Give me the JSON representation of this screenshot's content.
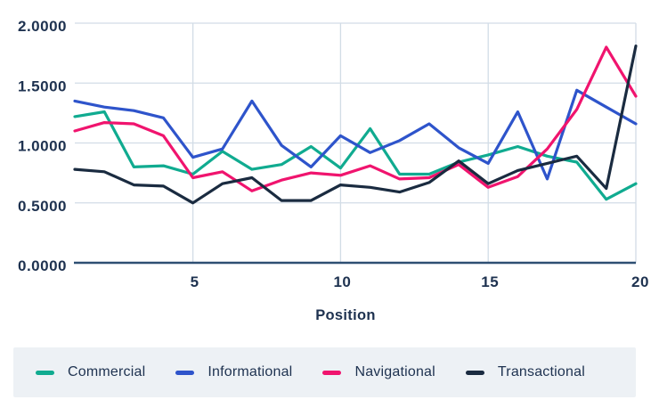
{
  "chart_data": {
    "type": "line",
    "title": "",
    "xlabel": "Position",
    "ylabel": "",
    "x_range": [
      1,
      20
    ],
    "ylim": [
      0,
      2
    ],
    "grid": true,
    "legend_position": "bottom",
    "x": [
      1,
      2,
      3,
      4,
      5,
      6,
      7,
      8,
      9,
      10,
      11,
      12,
      13,
      14,
      15,
      16,
      17,
      18,
      19,
      20
    ],
    "x_ticks": [
      {
        "label": "5",
        "value": 5
      },
      {
        "label": "10",
        "value": 10
      },
      {
        "label": "15",
        "value": 15
      },
      {
        "label": "20",
        "value": 20
      }
    ],
    "y_ticks": [
      {
        "label": "2.0000",
        "value": 2.0
      },
      {
        "label": "1.5000",
        "value": 1.5
      },
      {
        "label": "1.0000",
        "value": 1.0
      },
      {
        "label": "0.5000",
        "value": 0.5
      },
      {
        "label": "0.0000",
        "value": 0.0
      }
    ],
    "series": [
      {
        "name": "Commercial",
        "color": "#10ab90",
        "values": [
          1.22,
          1.26,
          0.8,
          0.81,
          0.74,
          0.93,
          0.78,
          0.82,
          0.97,
          0.79,
          1.12,
          0.74,
          0.74,
          0.84,
          0.9,
          0.97,
          0.89,
          0.84,
          0.53,
          0.66
        ]
      },
      {
        "name": "Informational",
        "color": "#2e54cb",
        "values": [
          1.35,
          1.3,
          1.27,
          1.21,
          0.88,
          0.95,
          1.35,
          0.98,
          0.8,
          1.06,
          0.92,
          1.02,
          1.16,
          0.96,
          0.83,
          1.26,
          0.7,
          1.44,
          1.3,
          1.16
        ]
      },
      {
        "name": "Navigational",
        "color": "#f0146e",
        "values": [
          1.1,
          1.17,
          1.16,
          1.06,
          0.71,
          0.76,
          0.6,
          0.69,
          0.75,
          0.73,
          0.81,
          0.7,
          0.71,
          0.82,
          0.63,
          0.72,
          0.95,
          1.28,
          1.8,
          1.39
        ]
      },
      {
        "name": "Transactional",
        "color": "#1a2b40",
        "values": [
          0.78,
          0.76,
          0.65,
          0.64,
          0.5,
          0.66,
          0.71,
          0.52,
          0.52,
          0.65,
          0.63,
          0.59,
          0.67,
          0.85,
          0.66,
          0.77,
          0.83,
          0.89,
          0.62,
          1.81
        ]
      }
    ]
  },
  "colors": {
    "background": "#ffffff",
    "grid": "#d2dce6",
    "axis_line": "#2e4f73",
    "label_text": "#1e3250",
    "legend_bg": "#edf1f5"
  },
  "legend": {
    "items": [
      {
        "label": "Commercial"
      },
      {
        "label": "Informational"
      },
      {
        "label": "Navigational"
      },
      {
        "label": "Transactional"
      }
    ]
  }
}
